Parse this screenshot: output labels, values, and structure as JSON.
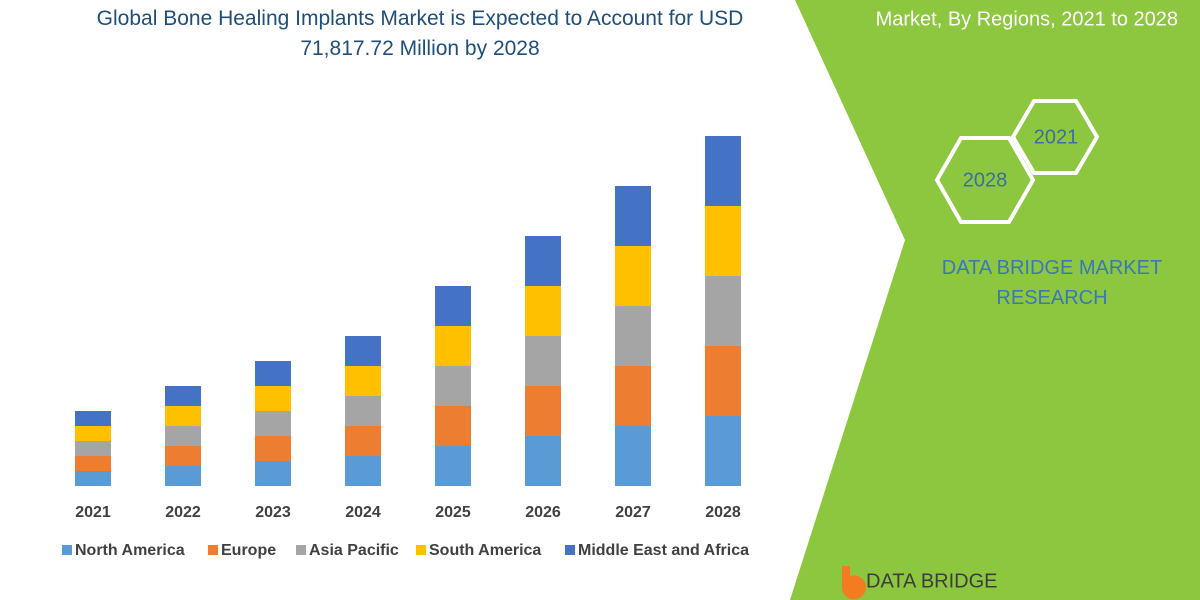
{
  "chart_data": {
    "type": "bar",
    "stacked": true,
    "title": "Global Bone Healing Implants Market is Expected to Account for USD 71,817.72 Million by 2028",
    "categories": [
      "2021",
      "2022",
      "2023",
      "2024",
      "2025",
      "2026",
      "2027",
      "2028"
    ],
    "series": [
      {
        "name": "North America",
        "color": "#5b9bd5",
        "values": [
          15,
          20,
          25,
          30,
          40,
          50,
          60,
          70
        ]
      },
      {
        "name": "Europe",
        "color": "#ed7d31",
        "values": [
          15,
          20,
          25,
          30,
          40,
          50,
          60,
          70
        ]
      },
      {
        "name": "Asia Pacific",
        "color": "#a5a5a5",
        "values": [
          15,
          20,
          25,
          30,
          40,
          50,
          60,
          70
        ]
      },
      {
        "name": "South America",
        "color": "#ffc000",
        "values": [
          15,
          20,
          25,
          30,
          40,
          50,
          60,
          70
        ]
      },
      {
        "name": "Middle East and Africa",
        "color": "#4472c4",
        "values": [
          15,
          20,
          25,
          30,
          40,
          50,
          60,
          70
        ]
      }
    ]
  },
  "panel": {
    "heading": "Market, By Regions, 2021 to 2028",
    "hexagons": [
      "2021",
      "2028"
    ],
    "brand": "DATA BRIDGE MARKET RESEARCH",
    "logo": "DATA BRIDGE"
  }
}
